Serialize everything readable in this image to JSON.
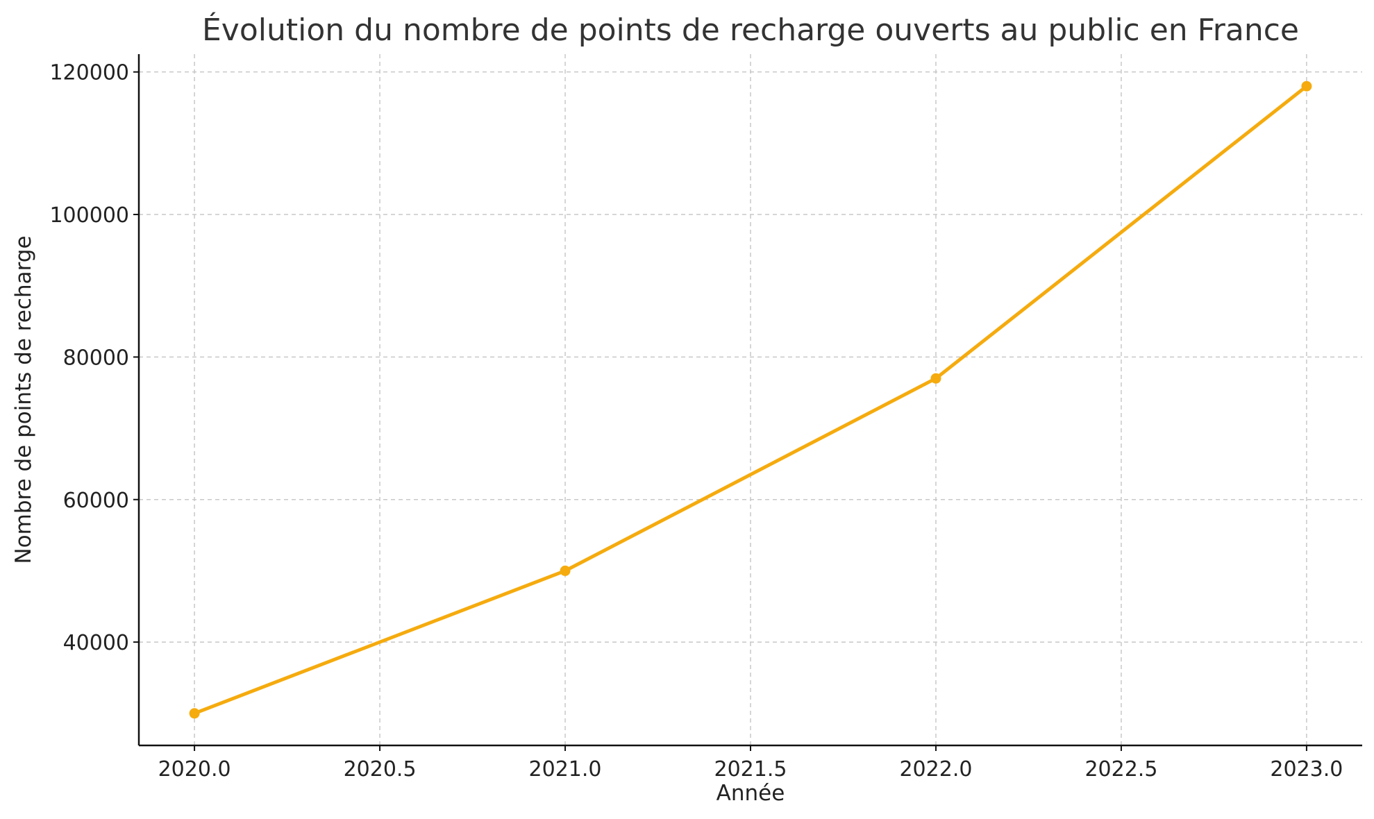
{
  "chart_data": {
    "type": "line",
    "title": "Évolution du nombre de points de recharge ouverts au public en France",
    "xlabel": "Année",
    "ylabel": "Nombre de points de recharge",
    "xlim": [
      2019.85,
      2023.15
    ],
    "ylim": [
      25500,
      122500
    ],
    "x_ticks": [
      2020.0,
      2020.5,
      2021.0,
      2021.5,
      2022.0,
      2022.5,
      2023.0
    ],
    "x_tick_labels": [
      "2020.0",
      "2020.5",
      "2021.0",
      "2021.5",
      "2022.0",
      "2022.5",
      "2023.0"
    ],
    "y_ticks": [
      40000,
      60000,
      80000,
      100000,
      120000
    ],
    "y_tick_labels": [
      "40000",
      "60000",
      "80000",
      "100000",
      "120000"
    ],
    "grid": true,
    "legend": "none",
    "series": [
      {
        "x": [
          2020,
          2021,
          2022,
          2023
        ],
        "values": [
          30000,
          50000,
          77000,
          118000
        ],
        "color": "#F5AB0E",
        "marker": "circle"
      }
    ]
  }
}
